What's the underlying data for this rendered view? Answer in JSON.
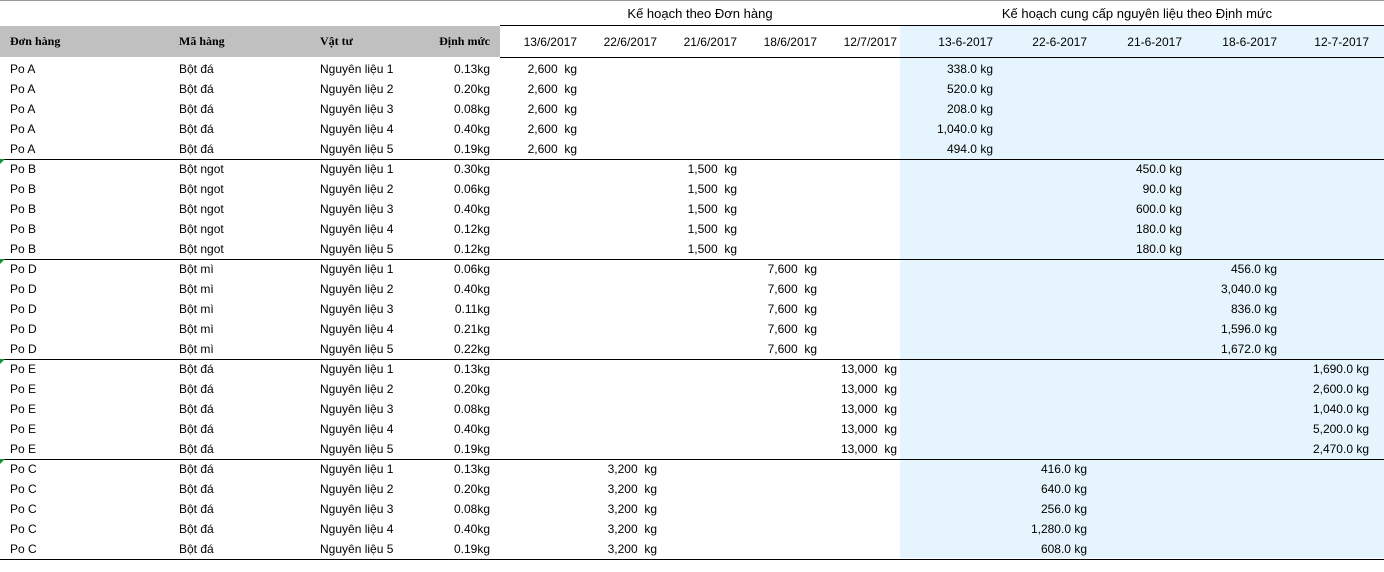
{
  "group_titles": {
    "order_plan": "Kế hoạch theo Đơn hàng",
    "supply_plan": "Kế hoạch cung cấp nguyên liệu theo Định mức"
  },
  "headers": {
    "order": "Đơn hàng",
    "item": "Mã hàng",
    "material": "Vật tư",
    "rate": "Định mức",
    "plan_dates": [
      "13/6/2017",
      "22/6/2017",
      "21/6/2017",
      "18/6/2017",
      "12/7/2017"
    ],
    "supply_dates": [
      "13-6-2017",
      "22-6-2017",
      "21-6-2017",
      "18-6-2017",
      "12-7-2017"
    ]
  },
  "colors": {
    "header_gray": "#c0c0c0",
    "supply_bg": "#e6f5fd",
    "marker_green": "#1e8c3a"
  },
  "rows": [
    {
      "order": "Po A",
      "item": "Bột đá",
      "material": "Nguyên liệu 1",
      "rate": "0.13kg",
      "plan": [
        "2,600  kg",
        "",
        "",
        "",
        ""
      ],
      "supply": [
        "338.0 kg",
        "",
        "",
        "",
        ""
      ]
    },
    {
      "order": "Po A",
      "item": "Bột đá",
      "material": "Nguyên liệu 2",
      "rate": "0.20kg",
      "plan": [
        "2,600  kg",
        "",
        "",
        "",
        ""
      ],
      "supply": [
        "520.0 kg",
        "",
        "",
        "",
        ""
      ]
    },
    {
      "order": "Po A",
      "item": "Bột đá",
      "material": "Nguyên liệu 3",
      "rate": "0.08kg",
      "plan": [
        "2,600  kg",
        "",
        "",
        "",
        ""
      ],
      "supply": [
        "208.0 kg",
        "",
        "",
        "",
        ""
      ]
    },
    {
      "order": "Po A",
      "item": "Bột đá",
      "material": "Nguyên liệu 4",
      "rate": "0.40kg",
      "plan": [
        "2,600  kg",
        "",
        "",
        "",
        ""
      ],
      "supply": [
        "1,040.0 kg",
        "",
        "",
        "",
        ""
      ]
    },
    {
      "order": "Po A",
      "item": "Bột đá",
      "material": "Nguyên liệu 5",
      "rate": "0.19kg",
      "plan": [
        "2,600  kg",
        "",
        "",
        "",
        ""
      ],
      "supply": [
        "494.0 kg",
        "",
        "",
        "",
        ""
      ]
    },
    {
      "order": "Po B",
      "item": "Bột ngot",
      "material": "Nguyên liệu 1",
      "rate": "0.30kg",
      "plan": [
        "",
        "",
        "1,500  kg",
        "",
        ""
      ],
      "supply": [
        "",
        "",
        "450.0 kg",
        "",
        ""
      ]
    },
    {
      "order": "Po B",
      "item": "Bột ngot",
      "material": "Nguyên liệu 2",
      "rate": "0.06kg",
      "plan": [
        "",
        "",
        "1,500  kg",
        "",
        ""
      ],
      "supply": [
        "",
        "",
        "90.0 kg",
        "",
        ""
      ]
    },
    {
      "order": "Po B",
      "item": "Bột ngot",
      "material": "Nguyên liệu 3",
      "rate": "0.40kg",
      "plan": [
        "",
        "",
        "1,500  kg",
        "",
        ""
      ],
      "supply": [
        "",
        "",
        "600.0 kg",
        "",
        ""
      ]
    },
    {
      "order": "Po B",
      "item": "Bột ngot",
      "material": "Nguyên liệu 4",
      "rate": "0.12kg",
      "plan": [
        "",
        "",
        "1,500  kg",
        "",
        ""
      ],
      "supply": [
        "",
        "",
        "180.0 kg",
        "",
        ""
      ]
    },
    {
      "order": "Po B",
      "item": "Bột ngot",
      "material": "Nguyên liệu 5",
      "rate": "0.12kg",
      "plan": [
        "",
        "",
        "1,500  kg",
        "",
        ""
      ],
      "supply": [
        "",
        "",
        "180.0 kg",
        "",
        ""
      ]
    },
    {
      "order": "Po D",
      "item": "Bột mì",
      "material": "Nguyên liệu 1",
      "rate": "0.06kg",
      "plan": [
        "",
        "",
        "",
        "7,600  kg",
        ""
      ],
      "supply": [
        "",
        "",
        "",
        "456.0 kg",
        ""
      ]
    },
    {
      "order": "Po D",
      "item": "Bột mì",
      "material": "Nguyên liệu 2",
      "rate": "0.40kg",
      "plan": [
        "",
        "",
        "",
        "7,600  kg",
        ""
      ],
      "supply": [
        "",
        "",
        "",
        "3,040.0 kg",
        ""
      ]
    },
    {
      "order": "Po D",
      "item": "Bột mì",
      "material": "Nguyên liệu 3",
      "rate": "0.11kg",
      "plan": [
        "",
        "",
        "",
        "7,600  kg",
        ""
      ],
      "supply": [
        "",
        "",
        "",
        "836.0 kg",
        ""
      ]
    },
    {
      "order": "Po D",
      "item": "Bột mì",
      "material": "Nguyên liệu 4",
      "rate": "0.21kg",
      "plan": [
        "",
        "",
        "",
        "7,600  kg",
        ""
      ],
      "supply": [
        "",
        "",
        "",
        "1,596.0 kg",
        ""
      ]
    },
    {
      "order": "Po D",
      "item": "Bột mì",
      "material": "Nguyên liệu 5",
      "rate": "0.22kg",
      "plan": [
        "",
        "",
        "",
        "7,600  kg",
        ""
      ],
      "supply": [
        "",
        "",
        "",
        "1,672.0 kg",
        ""
      ]
    },
    {
      "order": "Po E",
      "item": "Bột đá",
      "material": "Nguyên liệu 1",
      "rate": "0.13kg",
      "plan": [
        "",
        "",
        "",
        "",
        "13,000  kg"
      ],
      "supply": [
        "",
        "",
        "",
        "",
        "1,690.0 kg"
      ]
    },
    {
      "order": "Po E",
      "item": "Bột đá",
      "material": "Nguyên liệu 2",
      "rate": "0.20kg",
      "plan": [
        "",
        "",
        "",
        "",
        "13,000  kg"
      ],
      "supply": [
        "",
        "",
        "",
        "",
        "2,600.0 kg"
      ]
    },
    {
      "order": "Po E",
      "item": "Bột đá",
      "material": "Nguyên liệu 3",
      "rate": "0.08kg",
      "plan": [
        "",
        "",
        "",
        "",
        "13,000  kg"
      ],
      "supply": [
        "",
        "",
        "",
        "",
        "1,040.0 kg"
      ]
    },
    {
      "order": "Po E",
      "item": "Bột đá",
      "material": "Nguyên liệu 4",
      "rate": "0.40kg",
      "plan": [
        "",
        "",
        "",
        "",
        "13,000  kg"
      ],
      "supply": [
        "",
        "",
        "",
        "",
        "5,200.0 kg"
      ]
    },
    {
      "order": "Po E",
      "item": "Bột đá",
      "material": "Nguyên liệu 5",
      "rate": "0.19kg",
      "plan": [
        "",
        "",
        "",
        "",
        "13,000  kg"
      ],
      "supply": [
        "",
        "",
        "",
        "",
        "2,470.0 kg"
      ]
    },
    {
      "order": "Po C",
      "item": "Bột đá",
      "material": "Nguyên liệu 1",
      "rate": "0.13kg",
      "plan": [
        "",
        "3,200  kg",
        "",
        "",
        ""
      ],
      "supply": [
        "",
        "416.0 kg",
        "",
        "",
        ""
      ]
    },
    {
      "order": "Po C",
      "item": "Bột đá",
      "material": "Nguyên liệu 2",
      "rate": "0.20kg",
      "plan": [
        "",
        "3,200  kg",
        "",
        "",
        ""
      ],
      "supply": [
        "",
        "640.0 kg",
        "",
        "",
        ""
      ]
    },
    {
      "order": "Po C",
      "item": "Bột đá",
      "material": "Nguyên liệu 3",
      "rate": "0.08kg",
      "plan": [
        "",
        "3,200  kg",
        "",
        "",
        ""
      ],
      "supply": [
        "",
        "256.0 kg",
        "",
        "",
        ""
      ]
    },
    {
      "order": "Po C",
      "item": "Bột đá",
      "material": "Nguyên liệu 4",
      "rate": "0.40kg",
      "plan": [
        "",
        "3,200  kg",
        "",
        "",
        ""
      ],
      "supply": [
        "",
        "1,280.0 kg",
        "",
        "",
        ""
      ]
    },
    {
      "order": "Po C",
      "item": "Bột đá",
      "material": "Nguyên liệu 5",
      "rate": "0.19kg",
      "plan": [
        "",
        "3,200  kg",
        "",
        "",
        ""
      ],
      "supply": [
        "",
        "608.0 kg",
        "",
        "",
        ""
      ]
    }
  ]
}
